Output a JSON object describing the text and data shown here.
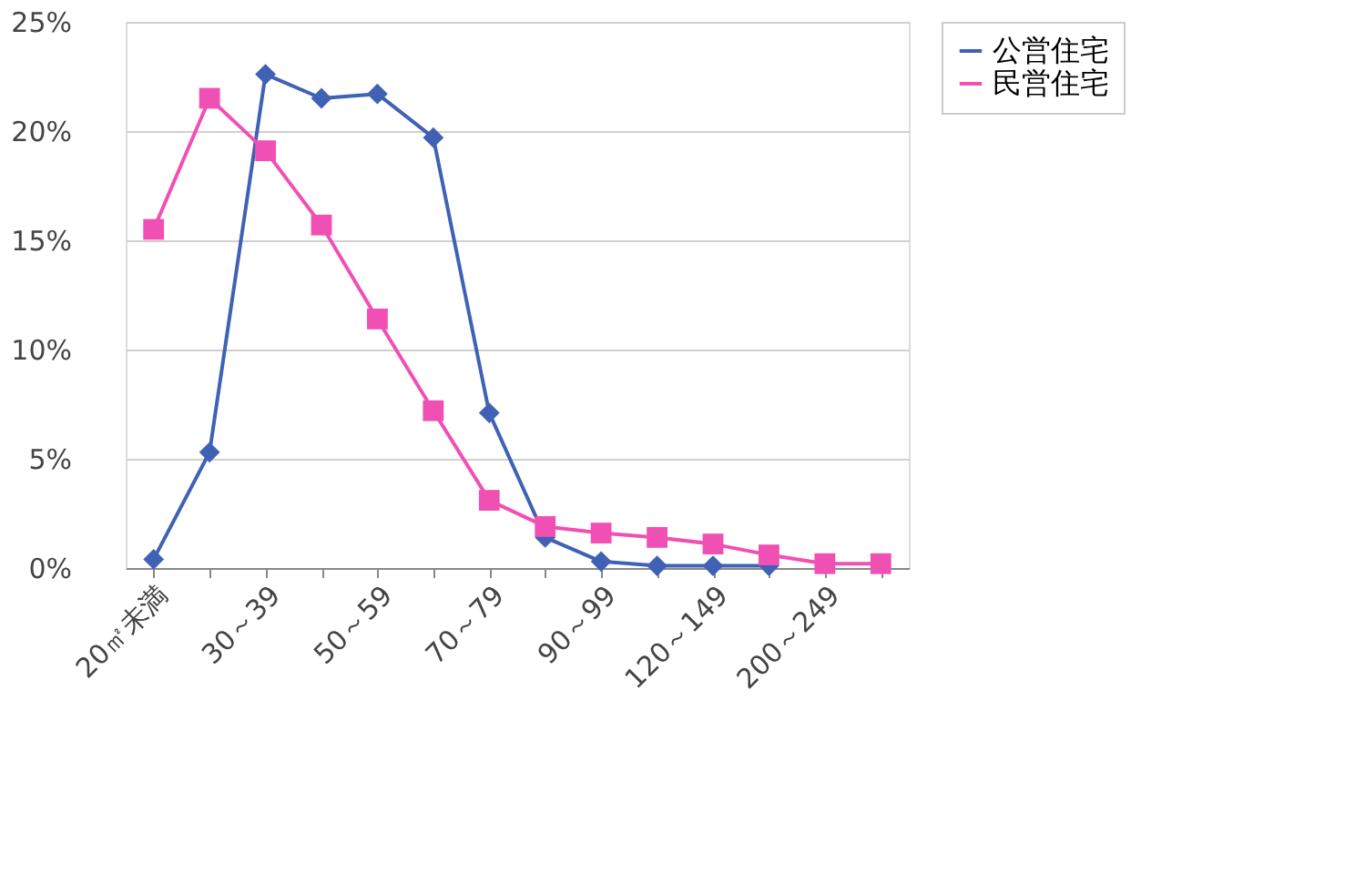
{
  "chart_data": {
    "type": "line",
    "categories": [
      "20㎡未満",
      null,
      "30～39",
      null,
      "50～59",
      null,
      "70～79",
      null,
      "90～99",
      null,
      "120～149",
      null,
      "200～249",
      null
    ],
    "series": [
      {
        "name": "公営住宅",
        "color": "#3f62b4",
        "marker": "diamond",
        "values": [
          0.4,
          5.3,
          22.6,
          21.5,
          21.7,
          19.7,
          7.1,
          1.4,
          0.3,
          0.1,
          0.1,
          0.1,
          null,
          null
        ]
      },
      {
        "name": "民営住宅",
        "color": "#f050b4",
        "marker": "square",
        "values": [
          15.5,
          21.5,
          19.1,
          15.7,
          11.4,
          7.2,
          3.1,
          1.9,
          1.6,
          1.4,
          1.1,
          0.6,
          0.2,
          0.2
        ]
      }
    ],
    "ylim": [
      0,
      25
    ],
    "yticks": [
      {
        "value": 0,
        "label": "0%"
      },
      {
        "value": 5,
        "label": "5%"
      },
      {
        "value": 10,
        "label": "10%"
      },
      {
        "value": 15,
        "label": "15%"
      },
      {
        "value": 20,
        "label": "20%"
      },
      {
        "value": 25,
        "label": "25%"
      }
    ],
    "grid": "y",
    "legend": "right"
  }
}
